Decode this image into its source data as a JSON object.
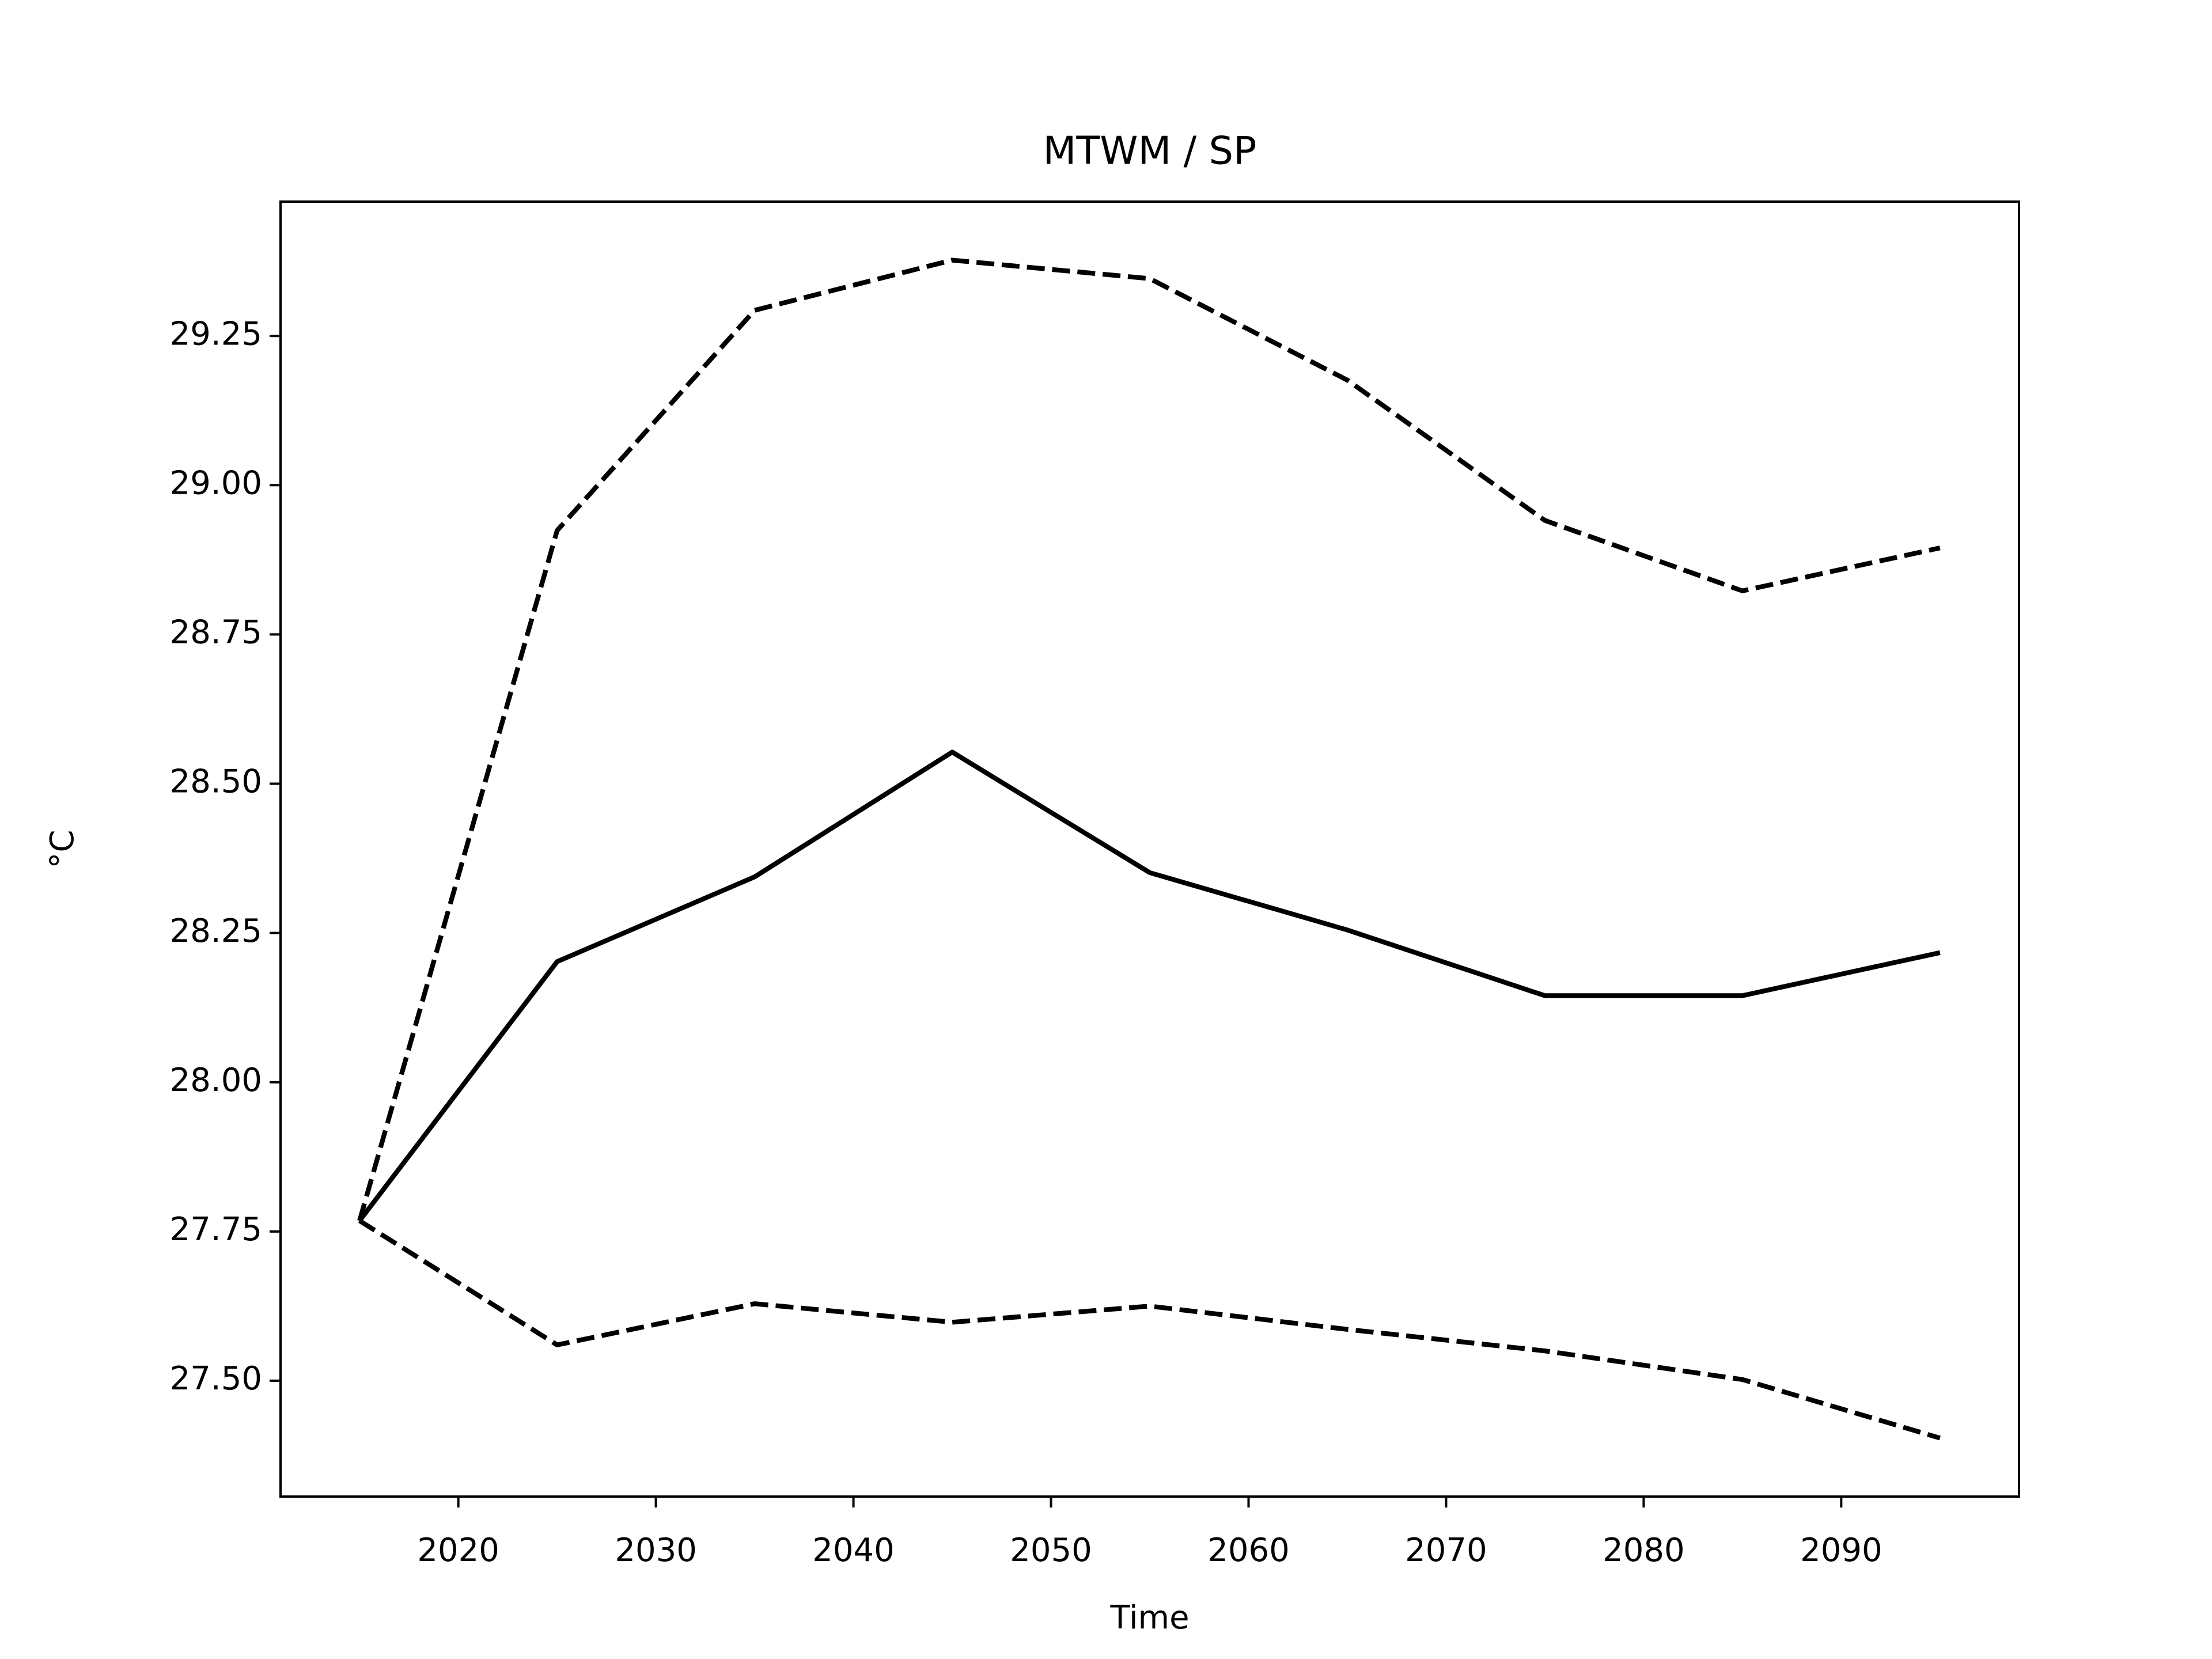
{
  "chart_data": {
    "type": "line",
    "title": "MTWM / SP",
    "xlabel": "Time",
    "ylabel": "°C",
    "x": [
      2015,
      2025,
      2035,
      2045,
      2055,
      2065,
      2075,
      2085,
      2095
    ],
    "series": [
      {
        "color": "#000000",
        "dashed": false,
        "values": [
          27.768,
          28.202,
          28.344,
          28.553,
          28.351,
          28.255,
          28.145,
          28.145,
          28.217
        ]
      },
      {
        "color": "#000000",
        "dashed": true,
        "values": [
          27.768,
          28.924,
          29.293,
          29.377,
          29.346,
          29.176,
          28.941,
          28.823,
          28.895
        ]
      },
      {
        "color": "#000000",
        "dashed": true,
        "values": [
          27.768,
          27.56,
          27.629,
          27.598,
          27.625,
          27.586,
          27.55,
          27.502,
          27.404
        ]
      }
    ],
    "xlim": [
      2011,
      2099
    ],
    "xticks": [
      2020,
      2030,
      2040,
      2050,
      2060,
      2070,
      2080,
      2090
    ],
    "ylim": [
      27.306,
      29.475
    ],
    "yticks": [
      {
        "value": 27.5,
        "label": "27.50"
      },
      27.75,
      {
        "value": 28.0,
        "label": "28.00"
      },
      28.25,
      {
        "value": 28.5,
        "label": "28.50"
      },
      28.75,
      {
        "value": 29.0,
        "label": "29.00"
      },
      29.25
    ],
    "grid": false
  }
}
